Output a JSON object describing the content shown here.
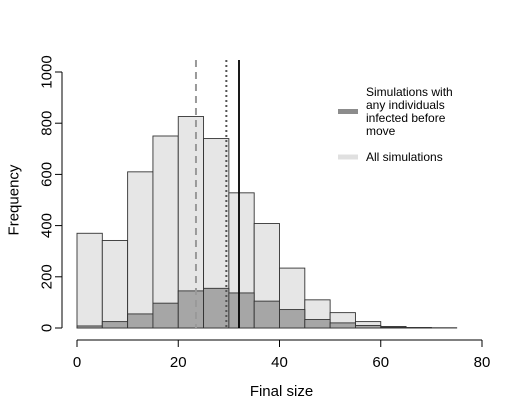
{
  "chart_data": {
    "type": "bar",
    "subtype": "histogram",
    "xlabel": "Final size",
    "ylabel": "Frequency",
    "xlim": [
      0,
      80
    ],
    "ylim": [
      0,
      1000
    ],
    "x_ticks": [
      0,
      20,
      40,
      60,
      80
    ],
    "y_ticks": [
      0,
      200,
      400,
      600,
      800,
      1000
    ],
    "bin_width": 5,
    "bin_starts": [
      0,
      5,
      10,
      15,
      20,
      25,
      30,
      35,
      40,
      45,
      50,
      55,
      60,
      65,
      70,
      75
    ],
    "series": [
      {
        "name": "All simulations",
        "color": "#e6e6e6",
        "values": [
          370,
          342,
          610,
          750,
          826,
          740,
          528,
          408,
          234,
          110,
          60,
          25,
          6,
          2,
          1,
          0
        ]
      },
      {
        "name": "Simulations with any individuals infected before move",
        "color": "#a6a6a6",
        "values": [
          8,
          25,
          55,
          97,
          145,
          155,
          137,
          105,
          72,
          33,
          20,
          10,
          3,
          1,
          0,
          0
        ]
      }
    ],
    "reference_lines": [
      {
        "x": 23.5,
        "style": "dashed",
        "color": "#999999"
      },
      {
        "x": 29.5,
        "style": "dotted",
        "color": "#555555"
      },
      {
        "x": 32.0,
        "style": "solid",
        "color": "#000000"
      }
    ],
    "legend": {
      "placement": "top-right",
      "entries": [
        {
          "label_lines": [
            "Simulations with",
            "any individuals",
            "infected before",
            "move"
          ],
          "color": "#8c8c8c"
        },
        {
          "label_lines": [
            "All simulations"
          ],
          "color": "#e0e0e0"
        }
      ]
    },
    "grid": false
  }
}
